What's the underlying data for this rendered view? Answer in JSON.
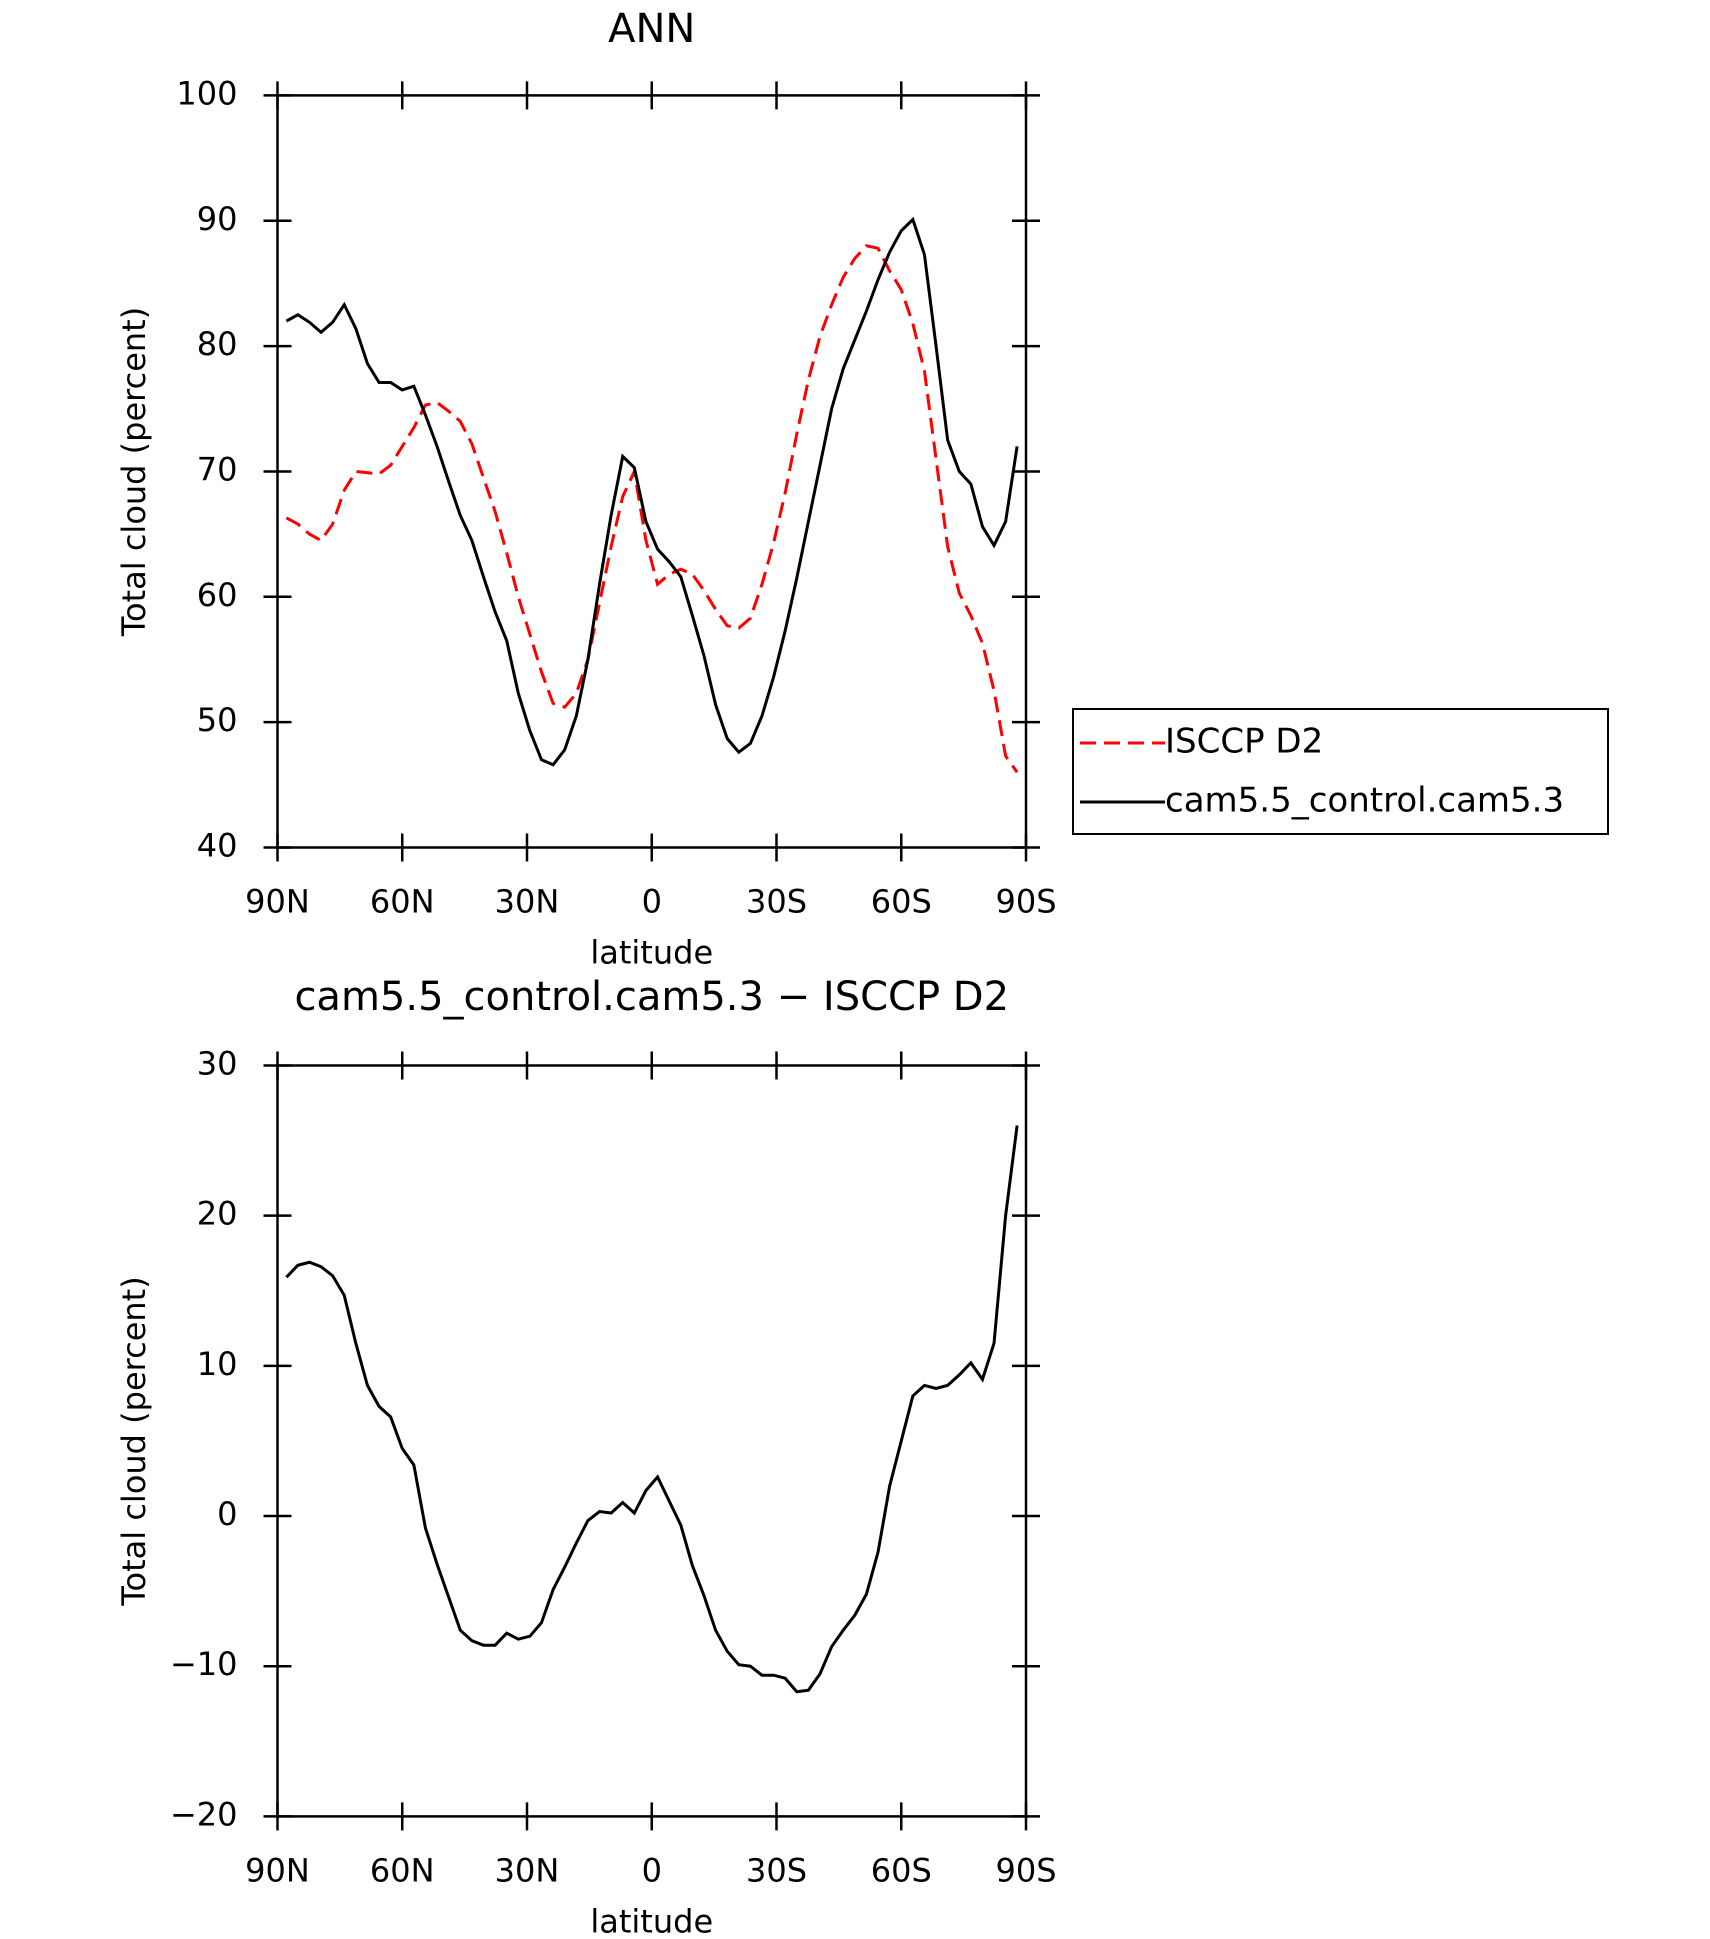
{
  "chart_data": [
    {
      "type": "line",
      "title": "ANN",
      "x_label": "latitude",
      "y_label": "Total cloud (percent)",
      "x": [
        87.86,
        85.1,
        82.31,
        79.53,
        76.74,
        73.95,
        71.16,
        68.37,
        65.58,
        62.79,
        60.0,
        57.21,
        54.42,
        51.63,
        48.84,
        46.05,
        43.26,
        40.47,
        37.67,
        34.88,
        32.09,
        29.3,
        26.51,
        23.72,
        20.93,
        18.14,
        15.35,
        12.56,
        9.77,
        6.98,
        4.19,
        1.4,
        -1.4,
        -4.19,
        -6.98,
        -9.77,
        -12.56,
        -15.35,
        -18.14,
        -20.93,
        -23.72,
        -26.51,
        -29.3,
        -32.09,
        -34.88,
        -37.67,
        -40.47,
        -43.26,
        -46.05,
        -48.84,
        -51.63,
        -54.42,
        -57.21,
        -60.0,
        -62.79,
        -65.58,
        -68.37,
        -71.16,
        -73.95,
        -76.74,
        -79.53,
        -82.31,
        -85.1,
        -87.86
      ],
      "series": [
        {
          "name": "ISCCP D2",
          "color": "#ff0000",
          "linestyle": "dashed",
          "values": [
            66.3,
            65.8,
            65.0,
            64.5,
            65.8,
            68.5,
            70.0,
            69.9,
            69.8,
            70.5,
            72.0,
            73.5,
            75.3,
            75.5,
            74.8,
            74.0,
            72.2,
            69.5,
            66.8,
            63.5,
            60.0,
            57.0,
            54.0,
            51.5,
            51.2,
            52.3,
            55.0,
            59.5,
            64.0,
            68.0,
            70.0,
            64.5,
            61.0,
            61.8,
            62.2,
            61.8,
            60.5,
            59.0,
            57.7,
            57.5,
            58.3,
            61.0,
            64.3,
            68.3,
            73.0,
            77.3,
            80.8,
            83.3,
            85.5,
            87.0,
            88.0,
            87.8,
            86.0,
            84.5,
            81.8,
            78.0,
            71.0,
            64.0,
            60.3,
            58.5,
            56.3,
            52.5,
            47.3,
            46.0
          ]
        },
        {
          "name": "cam5.5_control.cam5.3",
          "color": "#000000",
          "linestyle": "solid",
          "values": [
            82.0,
            82.5,
            81.9,
            81.1,
            81.9,
            83.3,
            81.4,
            78.6,
            77.1,
            77.1,
            76.5,
            76.8,
            74.5,
            72.0,
            69.2,
            66.5,
            64.5,
            61.6,
            58.8,
            56.5,
            52.3,
            49.3,
            47.0,
            46.6,
            47.8,
            50.5,
            55.0,
            61.0,
            66.5,
            71.2,
            70.3,
            66.0,
            63.8,
            62.8,
            61.6,
            58.5,
            55.3,
            51.4,
            48.7,
            47.6,
            48.3,
            50.5,
            53.6,
            57.3,
            61.5,
            66.0,
            70.5,
            75.0,
            78.2,
            80.5,
            82.8,
            85.3,
            87.5,
            89.2,
            90.1,
            87.3,
            80.0,
            72.5,
            70.0,
            69.0,
            65.6,
            64.1,
            66.0,
            72.0
          ]
        }
      ],
      "xlim": [
        90,
        -90
      ],
      "xticks": [
        {
          "value": 90,
          "label": "90N"
        },
        {
          "value": 60,
          "label": "60N"
        },
        {
          "value": 30,
          "label": "30N"
        },
        0,
        {
          "value": -30,
          "label": "30S"
        },
        {
          "value": -60,
          "label": "60S"
        },
        {
          "value": -90,
          "label": "90S"
        }
      ],
      "ylim": [
        40,
        100
      ],
      "yticks": [
        40,
        50,
        60,
        70,
        80,
        90,
        100
      ],
      "legend": "outside-right"
    },
    {
      "type": "line",
      "title": "cam5.5_control.cam5.3 − ISCCP D2",
      "x_label": "latitude",
      "y_label": "Total cloud (percent)",
      "x": [
        87.86,
        85.1,
        82.31,
        79.53,
        76.74,
        73.95,
        71.16,
        68.37,
        65.58,
        62.79,
        60.0,
        57.21,
        54.42,
        51.63,
        48.84,
        46.05,
        43.26,
        40.47,
        37.67,
        34.88,
        32.09,
        29.3,
        26.51,
        23.72,
        20.93,
        18.14,
        15.35,
        12.56,
        9.77,
        6.98,
        4.19,
        1.4,
        -1.4,
        -4.19,
        -6.98,
        -9.77,
        -12.56,
        -15.35,
        -18.14,
        -20.93,
        -23.72,
        -26.51,
        -29.3,
        -32.09,
        -34.88,
        -37.67,
        -40.47,
        -43.26,
        -46.05,
        -48.84,
        -51.63,
        -54.42,
        -57.21,
        -60.0,
        -62.79,
        -65.58,
        -68.37,
        -71.16,
        -73.95,
        -76.74,
        -79.53,
        -82.31,
        -85.1,
        -87.86
      ],
      "series": [
        {
          "color": "#000000",
          "linestyle": "solid",
          "values": [
            15.9,
            16.7,
            16.9,
            16.6,
            16.0,
            14.7,
            11.5,
            8.7,
            7.3,
            6.6,
            4.5,
            3.4,
            -0.8,
            -3.2,
            -5.4,
            -7.6,
            -8.3,
            -8.6,
            -8.6,
            -7.8,
            -8.2,
            -8.0,
            -7.1,
            -4.9,
            -3.4,
            -1.8,
            -0.3,
            0.3,
            0.2,
            0.9,
            0.2,
            1.7,
            2.6,
            1.0,
            -0.6,
            -3.3,
            -5.3,
            -7.6,
            -9.0,
            -9.9,
            -10.0,
            -10.6,
            -10.6,
            -10.8,
            -11.7,
            -11.6,
            -10.5,
            -8.7,
            -7.6,
            -6.6,
            -5.2,
            -2.4,
            2.0,
            5.0,
            8.0,
            8.7,
            8.5,
            8.7,
            9.4,
            10.2,
            9.1,
            11.5,
            20.0,
            26.0
          ]
        }
      ],
      "xlim": [
        90,
        -90
      ],
      "xticks": [
        {
          "value": 90,
          "label": "90N"
        },
        {
          "value": 60,
          "label": "60N"
        },
        {
          "value": 30,
          "label": "30N"
        },
        0,
        {
          "value": -30,
          "label": "30S"
        },
        {
          "value": -60,
          "label": "60S"
        },
        {
          "value": -90,
          "label": "90S"
        }
      ],
      "ylim": [
        -20,
        30
      ],
      "yticks": [
        {
          "value": -20,
          "label": "−20"
        },
        {
          "value": -10,
          "label": "−10"
        },
        0,
        10,
        20,
        30
      ]
    }
  ]
}
